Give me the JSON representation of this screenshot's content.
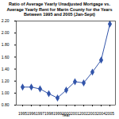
{
  "chart_data": {
    "type": "line",
    "title": "Ratio of Average Yearly Unadjusted Mortgage vs. Average Yearly Rent for Marin County for the Years Between 1995 and 2005 (Jan-Sept)",
    "x_label": "Year",
    "categories": [
      "1995",
      "1996",
      "1997",
      "1998",
      "1999",
      "2000",
      "2001",
      "2002",
      "2003",
      "2004",
      "2005"
    ],
    "values": [
      1.1,
      1.1,
      1.07,
      0.99,
      0.92,
      1.05,
      1.19,
      1.17,
      1.35,
      1.55,
      2.15
    ],
    "color": "#3355aa",
    "marker": "diamond",
    "ylim": [
      0.8,
      2.2
    ],
    "yticks": [
      {
        "value": 0.8,
        "label": "0.80"
      },
      {
        "value": 1.0,
        "label": "1.00"
      },
      {
        "value": 1.2,
        "label": "1.20"
      },
      {
        "value": 1.4,
        "label": "1.40"
      },
      {
        "value": 1.6,
        "label": "1.60"
      },
      {
        "value": 1.8,
        "label": "1.80"
      },
      {
        "value": 2.0,
        "label": "2.00"
      },
      {
        "value": 2.2,
        "label": "2.20"
      }
    ],
    "grid": false
  }
}
